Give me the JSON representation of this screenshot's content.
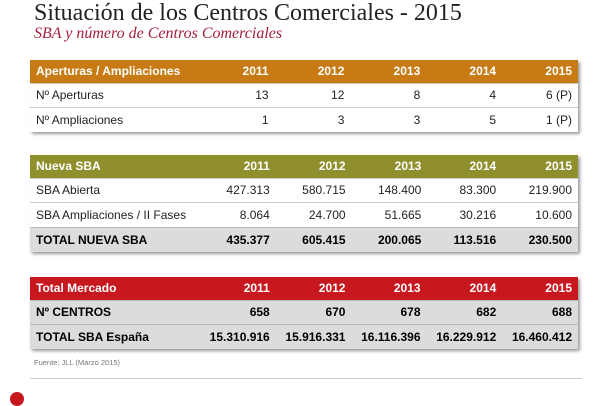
{
  "title": "Situación de los Centros Comerciales - 2015",
  "subtitle": "SBA y número de Centros Comerciales",
  "tables": [
    {
      "header": [
        "Aperturas / Ampliaciones",
        "2011",
        "2012",
        "2013",
        "2014",
        "2015"
      ],
      "color": "#c87a14",
      "rows": [
        [
          "Nº Aperturas",
          "13",
          "12",
          "8",
          "4",
          "6 (P)"
        ],
        [
          "Nº Ampliaciones",
          "1",
          "3",
          "3",
          "5",
          "1 (P)"
        ]
      ]
    },
    {
      "header": [
        "Nueva SBA",
        "2011",
        "2012",
        "2013",
        "2014",
        "2015"
      ],
      "color": "#8f8f2e",
      "rows": [
        [
          "SBA Abierta",
          "427.313",
          "580.715",
          "148.400",
          "83.300",
          "219.900"
        ],
        [
          "SBA Ampliaciones / II Fases",
          "8.064",
          "24.700",
          "51.665",
          "30.216",
          "10.600"
        ],
        [
          "TOTAL NUEVA SBA",
          "435.377",
          "605.415",
          "200.065",
          "113.516",
          "230.500"
        ]
      ]
    },
    {
      "header": [
        "Total Mercado",
        "2011",
        "2012",
        "2013",
        "2014",
        "2015"
      ],
      "color": "#c8181f",
      "rows": [
        [
          "Nº CENTROS",
          "658",
          "670",
          "678",
          "682",
          "688"
        ],
        [
          "TOTAL SBA España",
          "15.310.916",
          "15.916.331",
          "16.116.396",
          "16.229.912",
          "16.460.412"
        ]
      ]
    }
  ],
  "source": "Fuente: JLL (Marzo 2015)"
}
